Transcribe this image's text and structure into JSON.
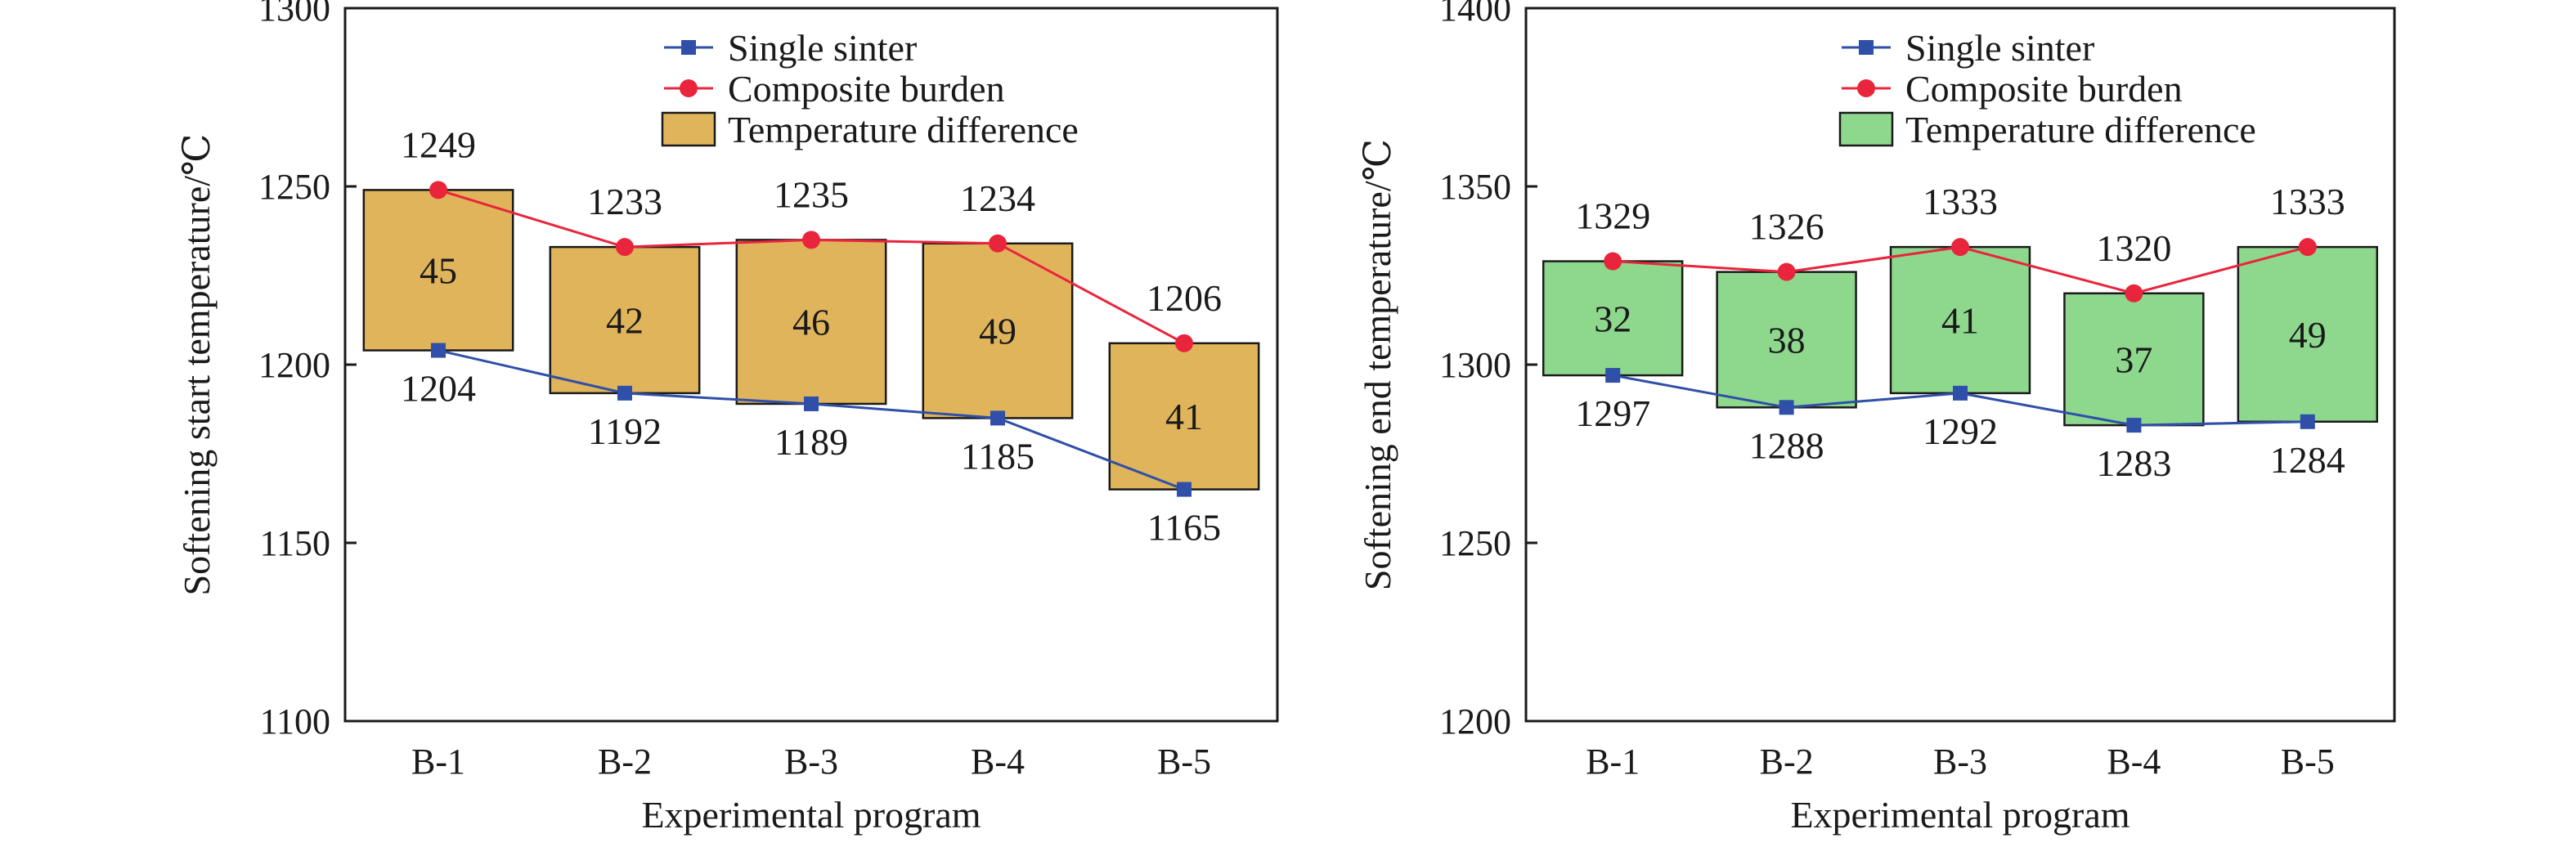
{
  "chart_data": [
    {
      "type": "bar",
      "categories": [
        "B-1",
        "B-2",
        "B-3",
        "B-4",
        "B-5"
      ],
      "series": [
        {
          "name": "Single sinter",
          "type": "line",
          "values": [
            1204,
            1192,
            1189,
            1185,
            1165
          ],
          "color": "#2f4fa8",
          "marker": "square"
        },
        {
          "name": "Composite burden",
          "type": "line",
          "values": [
            1249,
            1233,
            1235,
            1234,
            1206
          ],
          "color": "#e8253d",
          "marker": "circle"
        },
        {
          "name": "Temperature difference",
          "type": "floating-bar",
          "values": [
            45,
            42,
            46,
            49,
            41
          ],
          "color": "#e0b45a"
        }
      ],
      "xlabel": "Experimental program",
      "ylabel": "Softening start temperature/℃",
      "ylim": [
        1100,
        1300
      ],
      "yticks": [
        1100,
        1150,
        1200,
        1250,
        1300
      ],
      "legend_position": "top-right",
      "grid": false
    },
    {
      "type": "bar",
      "categories": [
        "B-1",
        "B-2",
        "B-3",
        "B-4",
        "B-5"
      ],
      "series": [
        {
          "name": "Single sinter",
          "type": "line",
          "values": [
            1297,
            1288,
            1292,
            1283,
            1284
          ],
          "color": "#2f4fa8",
          "marker": "square"
        },
        {
          "name": "Composite burden",
          "type": "line",
          "values": [
            1329,
            1326,
            1333,
            1320,
            1333
          ],
          "color": "#e8253d",
          "marker": "circle"
        },
        {
          "name": "Temperature difference",
          "type": "floating-bar",
          "values": [
            32,
            38,
            41,
            37,
            49
          ],
          "color": "#8ed88e"
        }
      ],
      "xlabel": "Experimental program",
      "ylabel": "Softening end temperature/℃",
      "ylim": [
        1200,
        1400
      ],
      "yticks": [
        1200,
        1250,
        1300,
        1350,
        1400
      ],
      "legend_position": "top-right",
      "grid": false
    }
  ]
}
